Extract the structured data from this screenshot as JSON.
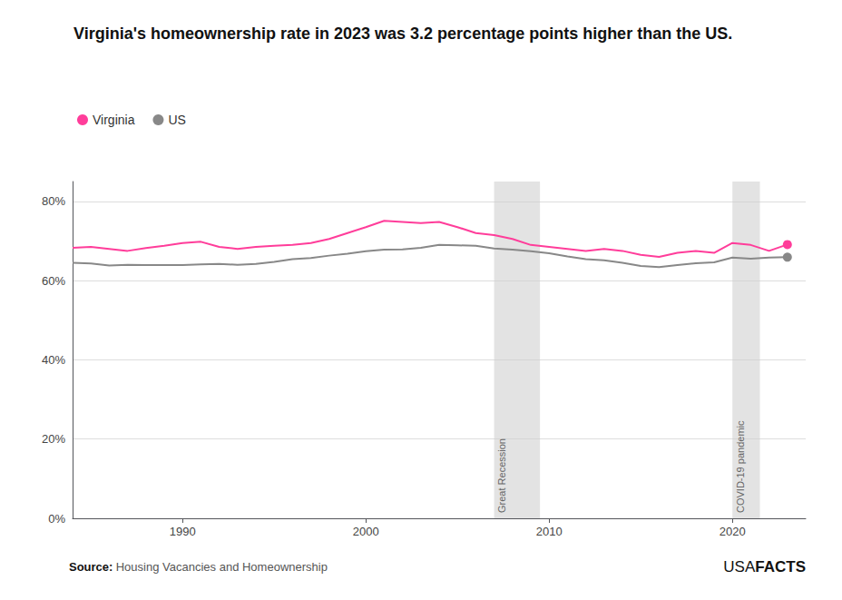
{
  "chart_data": {
    "type": "line",
    "title": "Virginia's homeownership rate in 2023 was 3.2 percentage points higher than the US.",
    "x": [
      1984,
      1985,
      1986,
      1987,
      1988,
      1989,
      1990,
      1991,
      1992,
      1993,
      1994,
      1995,
      1996,
      1997,
      1998,
      1999,
      2000,
      2001,
      2002,
      2003,
      2004,
      2005,
      2006,
      2007,
      2008,
      2009,
      2010,
      2011,
      2012,
      2013,
      2014,
      2015,
      2016,
      2017,
      2018,
      2019,
      2020,
      2021,
      2022,
      2023
    ],
    "series": [
      {
        "name": "Virginia",
        "color": "#FF3D9A",
        "values": [
          68.3,
          68.5,
          68.0,
          67.5,
          68.2,
          68.8,
          69.5,
          69.8,
          68.5,
          68.0,
          68.5,
          68.8,
          69.0,
          69.5,
          70.5,
          72.0,
          73.5,
          75.1,
          74.8,
          74.5,
          74.8,
          73.5,
          72.0,
          71.5,
          70.5,
          69.0,
          68.5,
          68.0,
          67.5,
          68.0,
          67.5,
          66.5,
          66.0,
          67.0,
          67.5,
          67.0,
          69.5,
          69.0,
          67.5,
          69.1
        ]
      },
      {
        "name": "US",
        "color": "#888888",
        "values": [
          64.5,
          64.3,
          63.8,
          64.0,
          63.9,
          63.9,
          63.9,
          64.1,
          64.2,
          64.0,
          64.2,
          64.7,
          65.4,
          65.7,
          66.3,
          66.8,
          67.4,
          67.8,
          67.9,
          68.3,
          69.0,
          68.9,
          68.8,
          68.1,
          67.8,
          67.4,
          66.9,
          66.1,
          65.4,
          65.1,
          64.5,
          63.7,
          63.4,
          63.9,
          64.4,
          64.6,
          65.8,
          65.5,
          65.8,
          65.9
        ]
      }
    ],
    "xlim": [
      1984,
      2024
    ],
    "xticks": [
      1990,
      2000,
      2010,
      2020
    ],
    "ylim": [
      0,
      85
    ],
    "yticks": [
      {
        "value": 0,
        "label": "0%"
      },
      {
        "value": 20,
        "label": "20%"
      },
      {
        "value": 40,
        "label": "40%"
      },
      {
        "value": 60,
        "label": "60%"
      },
      {
        "value": 80,
        "label": "80%"
      }
    ],
    "grid": true,
    "legend": "upper left",
    "annotations": [
      {
        "text": "Great Recession",
        "x": [
          2007,
          2009.5
        ],
        "color": "#D0D0D0"
      },
      {
        "text": "COVID-19 pandemic",
        "x": [
          2020,
          2021.5
        ],
        "color": "#D0D0D0"
      }
    ],
    "source_label": "Source:",
    "source": "Housing Vacancies and Homeownership",
    "branding": [
      "USA",
      "FACTS"
    ]
  }
}
